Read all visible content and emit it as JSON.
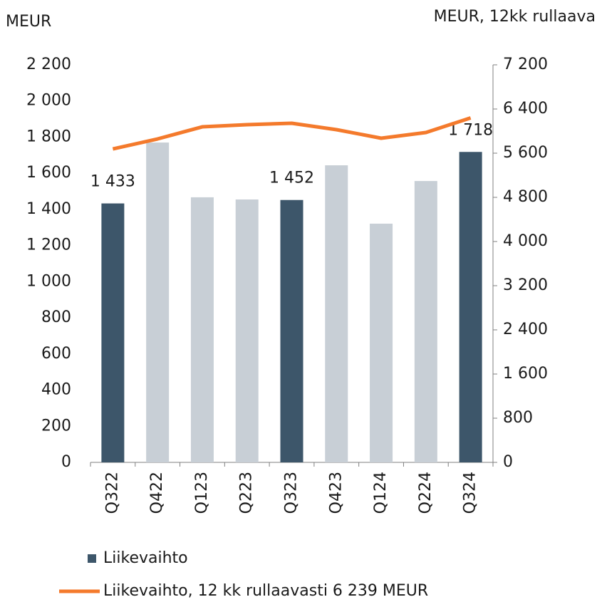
{
  "chart_data": {
    "type": "bar",
    "y_label": "MEUR",
    "y2_label": "MEUR, 12kk rullaava",
    "categories": [
      "Q322",
      "Q422",
      "Q123",
      "Q223",
      "Q323",
      "Q423",
      "Q124",
      "Q224",
      "Q324"
    ],
    "ylim": [
      0,
      2200
    ],
    "yticks": [
      0,
      200,
      400,
      600,
      800,
      {
        "value": 1000,
        "label": "1 000"
      },
      {
        "value": 1200,
        "label": "1 200"
      },
      {
        "value": 1400,
        "label": "1 400"
      },
      {
        "value": 1600,
        "label": "1 600"
      },
      {
        "value": 1800,
        "label": "1 800"
      },
      {
        "value": 2000,
        "label": "2 000"
      },
      {
        "value": 2200,
        "label": "2 200"
      }
    ],
    "y2lim": [
      0,
      7200
    ],
    "y2ticks": [
      0,
      800,
      {
        "value": 1600,
        "label": "1 600"
      },
      {
        "value": 2400,
        "label": "2 400"
      },
      {
        "value": 3200,
        "label": "3 200"
      },
      {
        "value": 4000,
        "label": "4 000"
      },
      {
        "value": 4800,
        "label": "4 800"
      },
      {
        "value": 5600,
        "label": "5 600"
      },
      {
        "value": 6400,
        "label": "6 400"
      },
      {
        "value": 7200,
        "label": "7 200"
      }
    ],
    "series": [
      {
        "name": "Liikevaihto",
        "type": "bar",
        "color": "#3d566a",
        "colors": [
          "#3d566a",
          "#c8cfd6",
          "#c8cfd6",
          "#c8cfd6",
          "#3d566a",
          "#c8cfd6",
          "#c8cfd6",
          "#c8cfd6",
          "#3d566a"
        ],
        "values": [
          1433,
          1770,
          1467,
          1455,
          1452,
          1644,
          1321,
          1557,
          1718
        ],
        "value_labels": [
          "1 433",
          null,
          null,
          null,
          "1 452",
          null,
          null,
          null,
          "1 718"
        ]
      },
      {
        "name": "Liikevaihto, 12 kk rullaavasti 6 239 MEUR",
        "type": "line",
        "color": "#f47a2c",
        "axis": "y2",
        "values": [
          5677,
          5858,
          6077,
          6116,
          6142,
          6026,
          5871,
          5974,
          6239
        ]
      }
    ]
  }
}
